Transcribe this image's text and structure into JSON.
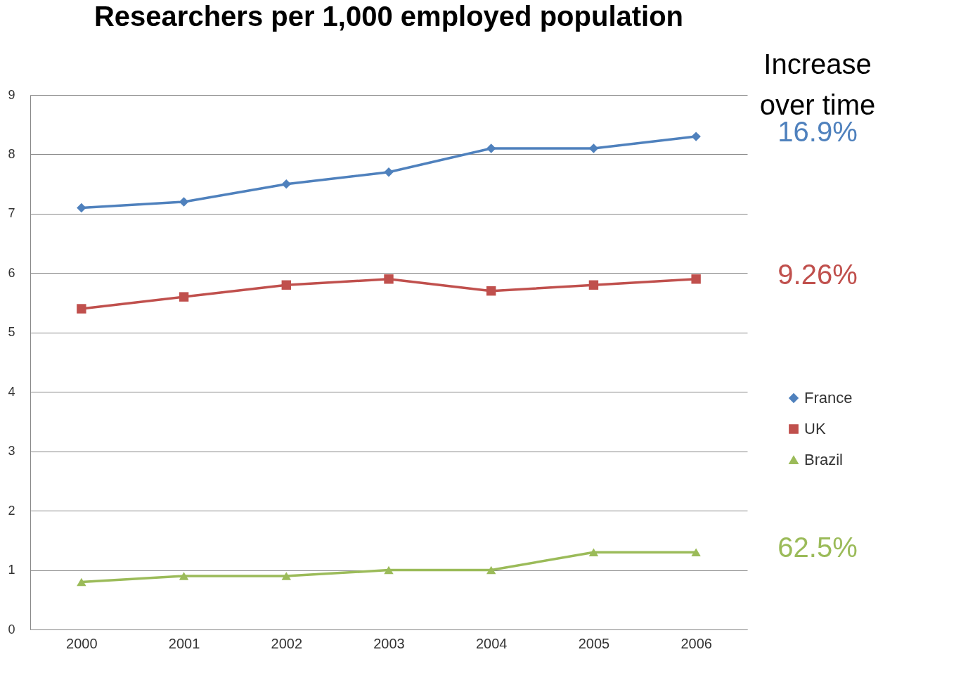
{
  "chart_data": {
    "type": "line",
    "title": "Researchers per 1,000 employed population",
    "categories": [
      "2000",
      "2001",
      "2002",
      "2003",
      "2004",
      "2005",
      "2006"
    ],
    "series": [
      {
        "name": "France",
        "color": "#4f81bd",
        "marker": "diamond",
        "values": [
          7.1,
          7.2,
          7.5,
          7.7,
          8.1,
          8.1,
          8.3
        ]
      },
      {
        "name": "UK",
        "color": "#c0504d",
        "marker": "square",
        "values": [
          5.4,
          5.6,
          5.8,
          5.9,
          5.7,
          5.8,
          5.9
        ]
      },
      {
        "name": "Brazil",
        "color": "#9bbb59",
        "marker": "triangle",
        "values": [
          0.8,
          0.9,
          0.9,
          1.0,
          1.0,
          1.3,
          1.3
        ]
      }
    ],
    "ylim": [
      0,
      9
    ],
    "yticks": [
      0,
      1,
      2,
      3,
      4,
      5,
      6,
      7,
      8,
      9
    ],
    "grid": "y",
    "legend": "right",
    "annotations": [
      "Increase\nover time",
      "16.9%",
      "9.26%",
      "62.5%"
    ]
  }
}
